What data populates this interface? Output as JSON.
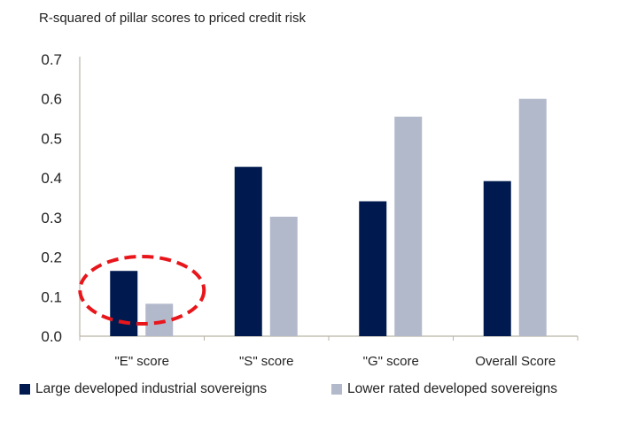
{
  "chart_data": {
    "type": "bar",
    "title": "R-squared of pillar scores to priced credit risk",
    "categories": [
      "\"E\" score",
      "\"S\" score",
      "\"G\" score",
      "Overall Score"
    ],
    "series": [
      {
        "name": "Large developed industrial sovereigns",
        "color": "#001A4F",
        "values": [
          0.165,
          0.428,
          0.341,
          0.392
        ]
      },
      {
        "name": "Lower rated developed sovereigns",
        "color": "#B2B9CB",
        "values": [
          0.082,
          0.302,
          0.555,
          0.6
        ]
      }
    ],
    "ylim": [
      0,
      0.7
    ],
    "yticks": [
      "0.0",
      "0.1",
      "0.2",
      "0.3",
      "0.4",
      "0.5",
      "0.6",
      "0.7"
    ],
    "xlabel": "",
    "ylabel": "",
    "grid": false,
    "legend_position": "bottom",
    "annotation": {
      "type": "dashed-ellipse",
      "target_category": "\"E\" score",
      "color": "#E8161B"
    }
  }
}
